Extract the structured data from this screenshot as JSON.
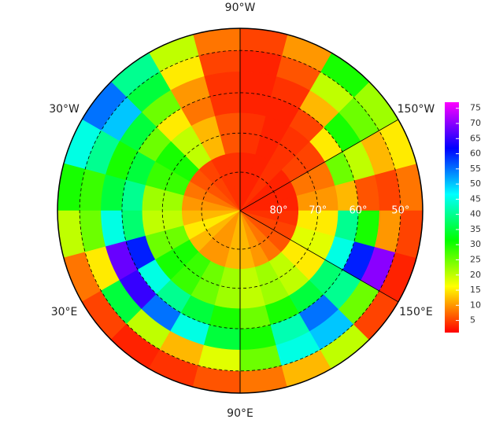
{
  "map": {
    "type": "polar-heatmap",
    "lon_labels": [
      {
        "value": -90,
        "label": "90°W"
      },
      {
        "value": -30,
        "label": "30°W"
      },
      {
        "value": -150,
        "label": "150°W"
      },
      {
        "value": 30,
        "label": "30°E"
      },
      {
        "value": 150,
        "label": "150°E"
      },
      {
        "value": 90,
        "label": "90°E"
      }
    ],
    "lat_ticks": [
      {
        "value": 80,
        "label": "80°"
      },
      {
        "value": 70,
        "label": "70°"
      },
      {
        "value": 60,
        "label": "60°"
      },
      {
        "value": 50,
        "label": "50°"
      }
    ],
    "lon_bins": [
      -180,
      -165,
      -150,
      -135,
      -120,
      -105,
      -90,
      -75,
      -60,
      -45,
      -30,
      -15,
      0,
      15,
      30,
      45,
      60,
      75,
      90,
      105,
      120,
      135,
      150,
      165,
      180
    ],
    "lat_bins": [
      45,
      50,
      55,
      60,
      65,
      75,
      90
    ],
    "values": [
      [
        8,
        15,
        22,
        30,
        10,
        5,
        8,
        20,
        40,
        55,
        45,
        30,
        20,
        8,
        5,
        3,
        4,
        6,
        8,
        12,
        20,
        5,
        3,
        5
      ],
      [
        5,
        12,
        25,
        20,
        6,
        3,
        5,
        15,
        35,
        50,
        40,
        28,
        25,
        15,
        35,
        20,
        12,
        18,
        25,
        45,
        50,
        25,
        70,
        10
      ],
      [
        6,
        20,
        30,
        12,
        4,
        3,
        4,
        10,
        25,
        35,
        30,
        35,
        45,
        68,
        65,
        55,
        45,
        35,
        30,
        42,
        55,
        40,
        60,
        30
      ],
      [
        12,
        25,
        15,
        5,
        3,
        3,
        4,
        8,
        15,
        25,
        35,
        40,
        38,
        60,
        45,
        40,
        35,
        30,
        25,
        30,
        35,
        38,
        45,
        40
      ],
      [
        10,
        8,
        5,
        4,
        3,
        4,
        6,
        12,
        20,
        30,
        28,
        22,
        20,
        25,
        30,
        28,
        25,
        22,
        20,
        22,
        20,
        15,
        18,
        15
      ],
      [
        3,
        3,
        3,
        4,
        3,
        3,
        4,
        4,
        5,
        6,
        8,
        10,
        12,
        15,
        12,
        10,
        10,
        12,
        12,
        10,
        8,
        6,
        5,
        4
      ]
    ],
    "clim": [
      1,
      77
    ],
    "cticks": [
      5,
      10,
      15,
      20,
      25,
      30,
      35,
      40,
      45,
      50,
      55,
      60,
      65,
      70,
      75
    ]
  }
}
